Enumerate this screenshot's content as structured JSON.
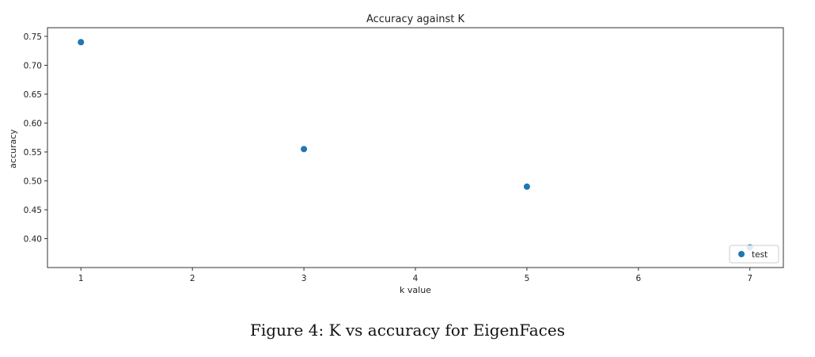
{
  "caption": "Figure 4: K vs accuracy for EigenFaces",
  "chart_data": {
    "type": "scatter",
    "title": "Accuracy against K",
    "xlabel": "k value",
    "ylabel": "accuracy",
    "xlim": [
      0.7,
      7.3
    ],
    "ylim": [
      0.35,
      0.765
    ],
    "xticks": [
      1,
      2,
      3,
      4,
      5,
      6,
      7
    ],
    "yticks": [
      0.4,
      0.45,
      0.5,
      0.55,
      0.6,
      0.65,
      0.7,
      0.75
    ],
    "grid": false,
    "legend": "bottom-right",
    "marker_color": "#1f77b4",
    "series": [
      {
        "name": "test",
        "x": [
          1,
          3,
          5,
          7
        ],
        "y": [
          0.74,
          0.555,
          0.49,
          0.385
        ]
      }
    ]
  }
}
